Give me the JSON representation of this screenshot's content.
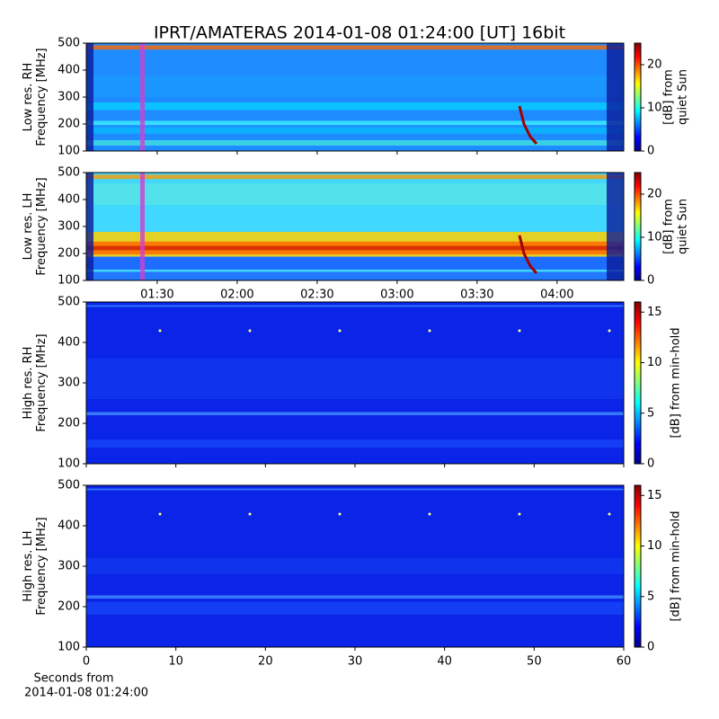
{
  "title": "IPRT/AMATERAS 2014-01-08 01:24:00 [UT]   16bit",
  "chart_data": [
    {
      "type": "heatmap",
      "ylabel": [
        "Low res. RH",
        "Frequency [MHz]"
      ],
      "ylim": [
        100,
        500
      ],
      "yticks": [
        100,
        200,
        300,
        400,
        500
      ],
      "colorbar_label": [
        "[dB] from",
        "quiet Sun"
      ],
      "clim": [
        0,
        25
      ],
      "cticks": [
        0,
        10,
        20
      ],
      "colormap": "jet"
    },
    {
      "type": "heatmap",
      "ylabel": [
        "Low res. LH",
        "Frequency [MHz]"
      ],
      "ylim": [
        100,
        500
      ],
      "yticks": [
        100,
        200,
        300,
        400,
        500
      ],
      "xlim": [
        63.4,
        265
      ],
      "xticks": [
        {
          "value": 90,
          "label": "01:30"
        },
        {
          "value": 120,
          "label": "02:00"
        },
        {
          "value": 150,
          "label": "02:30"
        },
        {
          "value": 180,
          "label": "03:00"
        },
        {
          "value": 210,
          "label": "03:30"
        },
        {
          "value": 240,
          "label": "04:00"
        }
      ],
      "colorbar_label": [
        "[dB] from",
        "quiet Sun"
      ],
      "clim": [
        0,
        25
      ],
      "cticks": [
        0,
        10,
        20
      ],
      "colormap": "jet"
    },
    {
      "type": "heatmap",
      "ylabel": [
        "High res. RH",
        "Frequency [MHz]"
      ],
      "ylim": [
        100,
        500
      ],
      "yticks": [
        100,
        200,
        300,
        400,
        500
      ],
      "colorbar_label": [
        "[dB] from min-hold"
      ],
      "clim": [
        0,
        16
      ],
      "cticks": [
        0,
        5,
        10,
        15
      ],
      "colormap": "jet"
    },
    {
      "type": "heatmap",
      "ylabel": [
        "High res. LH",
        "Frequency [MHz]"
      ],
      "ylim": [
        100,
        500
      ],
      "yticks": [
        100,
        200,
        300,
        400,
        500
      ],
      "xlim": [
        0,
        60
      ],
      "xticks": [
        0,
        10,
        20,
        30,
        40,
        50,
        60
      ],
      "xlabel": [
        "Seconds from",
        "2014-01-08 01:24:00"
      ],
      "colorbar_label": [
        "[dB] from min-hold"
      ],
      "clim": [
        0,
        16
      ],
      "cticks": [
        0,
        5,
        10,
        15
      ],
      "colormap": "jet"
    }
  ]
}
